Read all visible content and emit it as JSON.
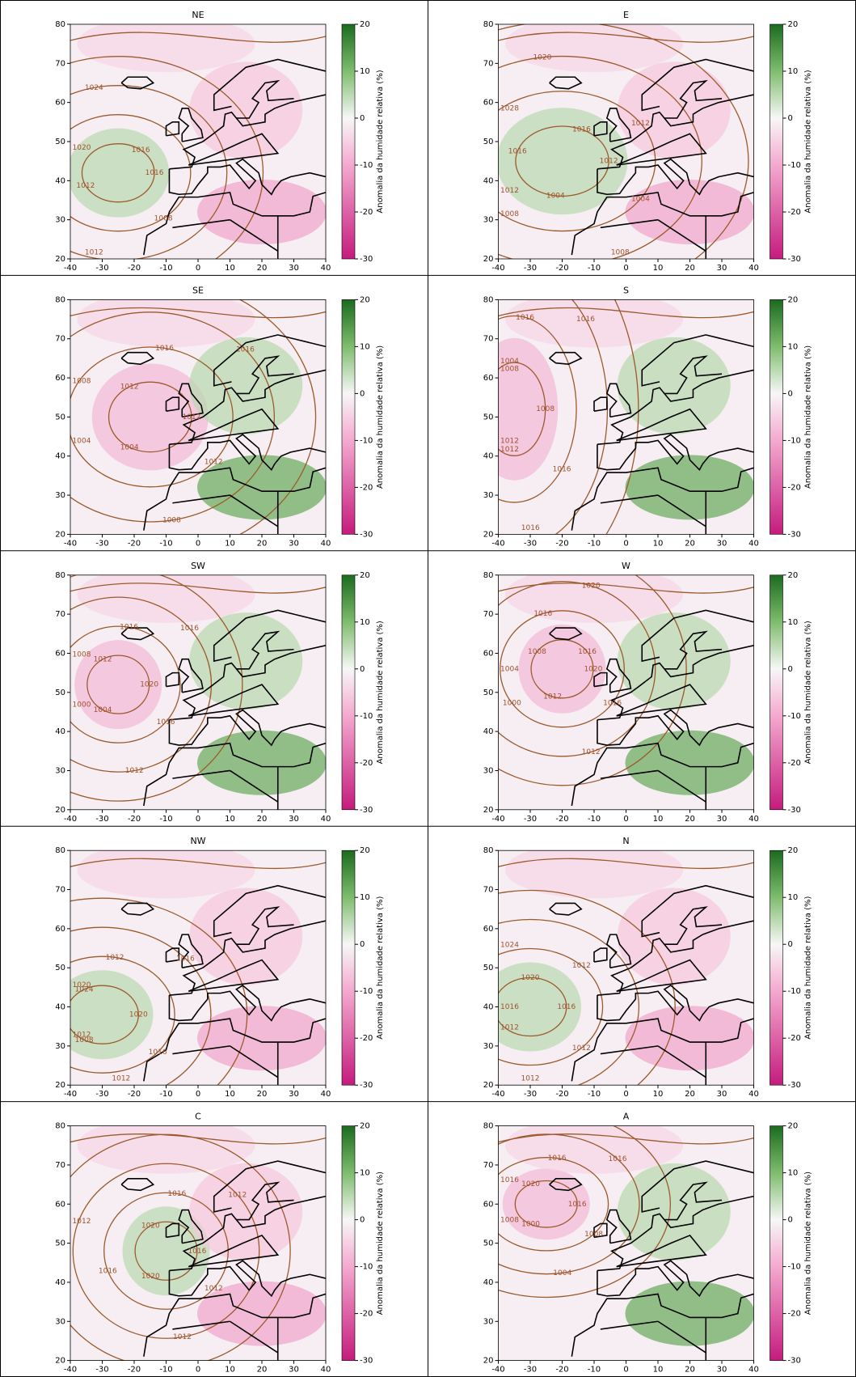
{
  "chart_data": {
    "type": "map",
    "xlim": [
      -40,
      40
    ],
    "ylim": [
      20,
      80
    ],
    "xticks": [
      -40,
      -30,
      -20,
      -10,
      0,
      10,
      20,
      30,
      40
    ],
    "yticks": [
      20,
      30,
      40,
      50,
      60,
      70,
      80
    ],
    "colorbar_label": "Anomalia da humidade relativa (%)",
    "colorbar_lim": [
      -30,
      20
    ],
    "colorbar_ticks": [
      20,
      10,
      0,
      -10,
      -20,
      -30
    ],
    "panels": [
      {
        "title": "NE",
        "contour_labels": [
          1016,
          1008,
          1012,
          1012,
          1020,
          1024,
          1016
        ]
      },
      {
        "title": "E",
        "contour_labels": [
          1012,
          1004,
          1008,
          1004,
          1008,
          1012,
          1016,
          1028,
          1020,
          1016,
          1012
        ]
      },
      {
        "title": "SE",
        "contour_labels": [
          1012,
          1012,
          1008,
          1004,
          1004,
          1008,
          1012,
          1016,
          1016
        ]
      },
      {
        "title": "S",
        "contour_labels": [
          1008,
          1016,
          1016,
          1012,
          1012,
          1004,
          1008,
          1016,
          1016
        ]
      },
      {
        "title": "SW",
        "contour_labels": [
          1020,
          1016,
          1012,
          1004,
          1000,
          1008,
          1012,
          1016,
          1016
        ]
      },
      {
        "title": "W",
        "contour_labels": [
          1020,
          1016,
          1012,
          1012,
          1000,
          1004,
          1008,
          1016,
          1020,
          1016
        ]
      },
      {
        "title": "NW",
        "contour_labels": [
          1020,
          1016,
          1012,
          1008,
          1012,
          1020,
          1024,
          1012,
          1016
        ]
      },
      {
        "title": "N",
        "contour_labels": [
          1016,
          1012,
          1012,
          1012,
          1016,
          1024,
          1020,
          1012
        ]
      },
      {
        "title": "C",
        "contour_labels": [
          1016,
          1012,
          1012,
          1020,
          1016,
          1012,
          1020,
          1016,
          1012
        ]
      },
      {
        "title": "A",
        "contour_labels": [
          1016,
          1008,
          1004,
          1000,
          1008,
          1016,
          1020,
          1016,
          1016
        ]
      }
    ]
  }
}
